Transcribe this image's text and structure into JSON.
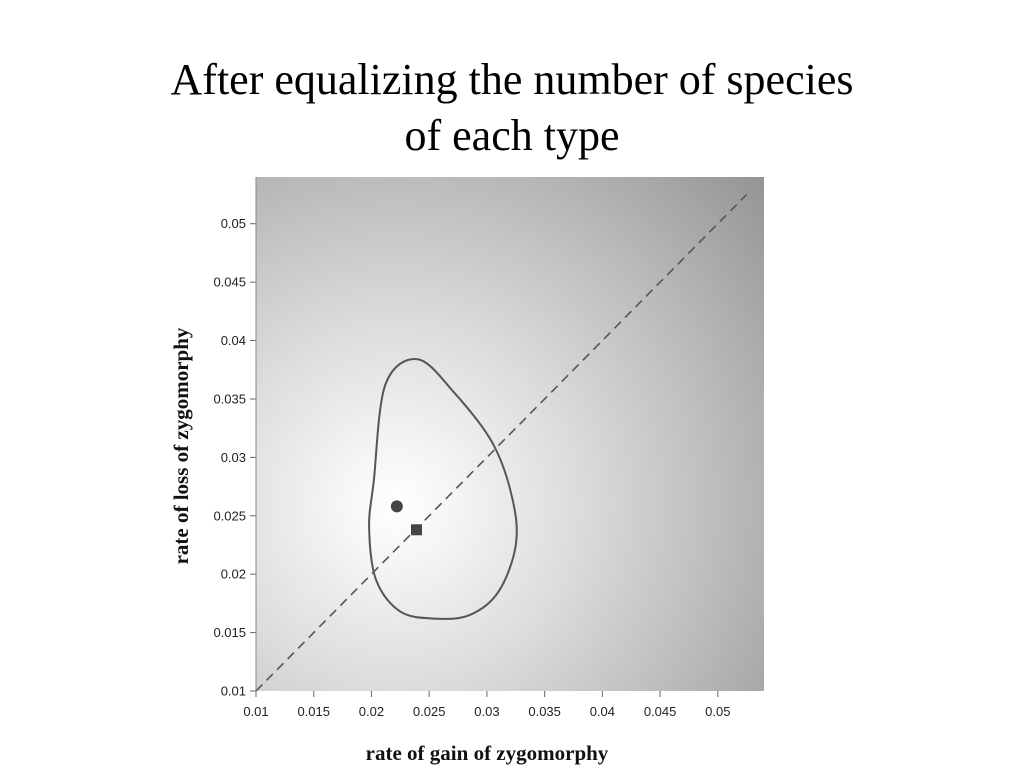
{
  "slide": {
    "title_line1": "After equalizing the number of species",
    "title_line2": "of each type"
  },
  "chart_data": {
    "type": "scatter",
    "title": "",
    "xlabel": "rate of gain of zygomorphy",
    "ylabel": "rate of loss of zygomorphy",
    "xlim": [
      0.01,
      0.054
    ],
    "ylim": [
      0.01,
      0.054
    ],
    "x_ticks": [
      "0.01",
      "0.015",
      "0.02",
      "0.025",
      "0.03",
      "0.035",
      "0.04",
      "0.045",
      "0.05"
    ],
    "y_ticks": [
      "0.01",
      "0.015",
      "0.02",
      "0.025",
      "0.03",
      "0.035",
      "0.04",
      "0.045",
      "0.05"
    ],
    "grid": false,
    "background": "likelihood surface (grayscale, lightest near the maximum)",
    "points": [
      {
        "marker": "circle",
        "x": 0.0222,
        "y": 0.0258
      },
      {
        "marker": "square",
        "x": 0.0239,
        "y": 0.0238
      }
    ],
    "reference_line": {
      "style": "dashed",
      "x": [
        0.01,
        0.0525
      ],
      "y": [
        0.01,
        0.0525
      ]
    },
    "contour": {
      "x": [
        0.0202,
        0.0198,
        0.0204,
        0.0225,
        0.0255,
        0.0285,
        0.031,
        0.0325,
        0.0322,
        0.0305,
        0.0272,
        0.024,
        0.0212,
        0.0202
      ],
      "y": [
        0.028,
        0.024,
        0.0195,
        0.0168,
        0.0162,
        0.0165,
        0.0185,
        0.0225,
        0.0265,
        0.0312,
        0.0355,
        0.0384,
        0.0362,
        0.028
      ]
    }
  }
}
